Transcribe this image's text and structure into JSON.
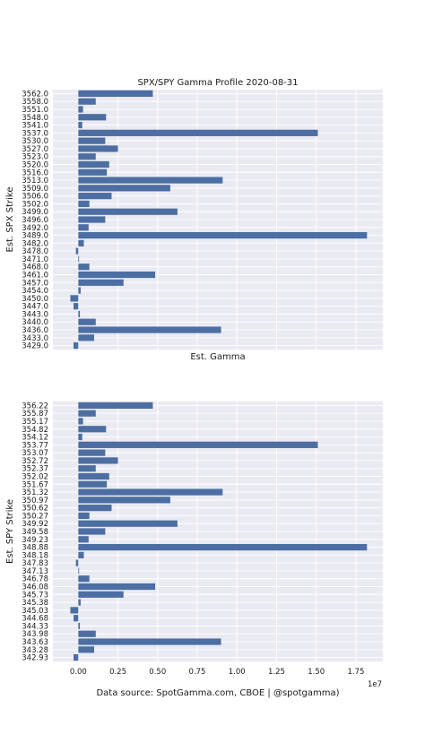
{
  "chart_data": [
    {
      "type": "bar",
      "orientation": "horizontal",
      "title": "SPX/SPY Gamma Profile 2020-08-31",
      "xlabel": "Est. Gamma",
      "ylabel": "Est. SPX Strike",
      "xlim": [
        -1600000,
        19200000
      ],
      "grid": true,
      "categories": [
        "3562.0",
        "3558.0",
        "3551.0",
        "3548.0",
        "3541.0",
        "3537.0",
        "3530.0",
        "3527.0",
        "3523.0",
        "3520.0",
        "3516.0",
        "3513.0",
        "3509.0",
        "3506.0",
        "3502.0",
        "3499.0",
        "3496.0",
        "3492.0",
        "3489.0",
        "3482.0",
        "3478.0",
        "3471.0",
        "3468.0",
        "3461.0",
        "3457.0",
        "3454.0",
        "3450.0",
        "3447.0",
        "3443.0",
        "3440.0",
        "3436.0",
        "3433.0",
        "3429.0"
      ],
      "values": [
        4700000,
        1100000,
        300000,
        1750000,
        250000,
        15100000,
        1700000,
        2500000,
        1100000,
        1950000,
        1800000,
        9100000,
        5800000,
        2100000,
        700000,
        6250000,
        1700000,
        650000,
        18200000,
        350000,
        -150000,
        50000,
        700000,
        4850000,
        2850000,
        150000,
        -500000,
        -300000,
        100000,
        1100000,
        9000000,
        1000000,
        -300000
      ]
    },
    {
      "type": "bar",
      "orientation": "horizontal",
      "xlabel": "",
      "ylabel": "Est. SPY Strike",
      "xlim": [
        -1600000,
        19200000
      ],
      "xticks": [
        0,
        2500000,
        5000000,
        7500000,
        10000000,
        12500000,
        15000000,
        17500000
      ],
      "xticklabels": [
        "0.00",
        "0.25",
        "0.50",
        "0.75",
        "1.00",
        "1.25",
        "1.50",
        "1.75"
      ],
      "offset_label": "1e7",
      "grid": true,
      "categories": [
        "356.22",
        "355.87",
        "355.17",
        "354.82",
        "354.12",
        "353.77",
        "353.07",
        "352.72",
        "352.37",
        "352.02",
        "351.67",
        "351.32",
        "350.97",
        "350.62",
        "350.27",
        "349.92",
        "349.58",
        "349.23",
        "348.88",
        "348.18",
        "347.83",
        "347.13",
        "346.78",
        "346.08",
        "345.73",
        "345.38",
        "345.03",
        "344.68",
        "344.33",
        "343.98",
        "343.63",
        "343.28",
        "342.93"
      ],
      "values": [
        4700000,
        1100000,
        300000,
        1750000,
        250000,
        15100000,
        1700000,
        2500000,
        1100000,
        1950000,
        1800000,
        9100000,
        5800000,
        2100000,
        700000,
        6250000,
        1700000,
        650000,
        18200000,
        350000,
        -150000,
        50000,
        700000,
        4850000,
        2850000,
        150000,
        -500000,
        -300000,
        100000,
        1100000,
        9000000,
        1000000,
        -300000
      ]
    }
  ],
  "footer": {
    "source": "Data source: SpotGamma.com, CBOE | @spotgamma)"
  },
  "colors": {
    "bar": "#4c6ea2",
    "axes_bg": "#eaeaf2",
    "grid": "#ffffff"
  }
}
